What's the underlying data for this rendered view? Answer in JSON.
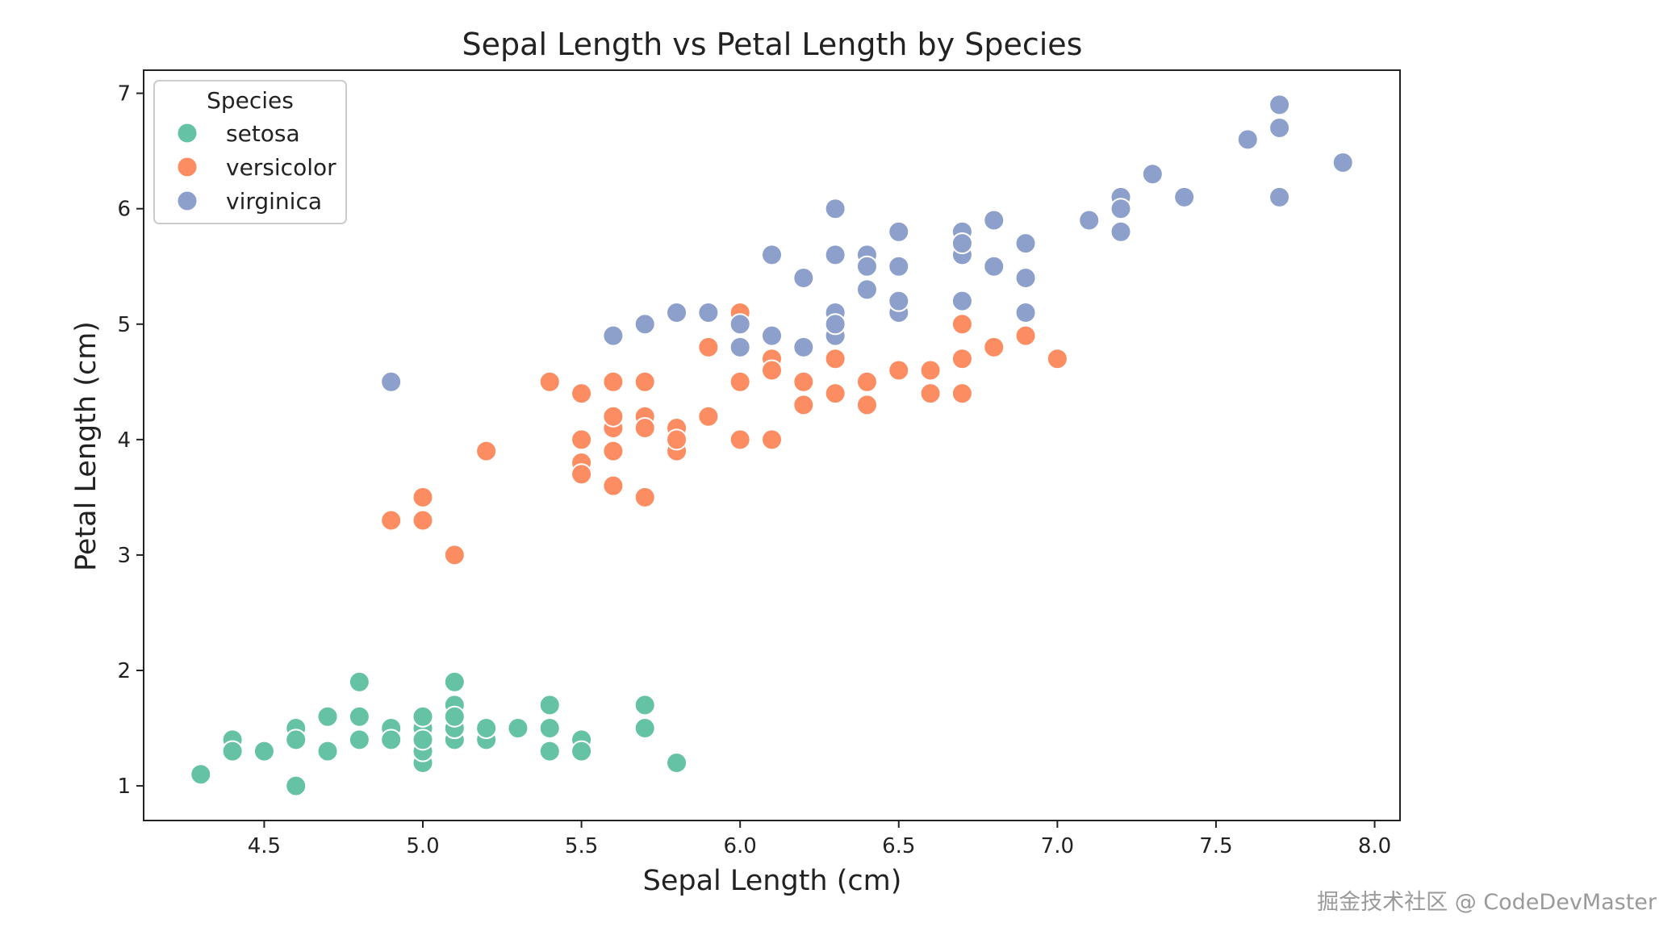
{
  "chart_data": {
    "type": "scatter",
    "title": "Sepal Length vs Petal Length by Species",
    "xlabel": "Sepal Length (cm)",
    "ylabel": "Petal Length (cm)",
    "xlim": [
      4.12,
      8.08
    ],
    "ylim": [
      0.7,
      7.2
    ],
    "xticks": [
      "4.5",
      "5.0",
      "5.5",
      "6.0",
      "6.5",
      "7.0",
      "7.5",
      "8.0"
    ],
    "yticks": [
      "1",
      "2",
      "3",
      "4",
      "5",
      "6",
      "7"
    ],
    "grid": false,
    "legend": {
      "title": "Species",
      "position": "top-left"
    },
    "series": [
      {
        "name": "setosa",
        "color": "#66c2a5",
        "points": [
          [
            5.1,
            1.4
          ],
          [
            4.9,
            1.4
          ],
          [
            4.7,
            1.3
          ],
          [
            4.6,
            1.5
          ],
          [
            5.0,
            1.4
          ],
          [
            5.4,
            1.7
          ],
          [
            4.6,
            1.4
          ],
          [
            5.0,
            1.5
          ],
          [
            4.4,
            1.4
          ],
          [
            4.9,
            1.5
          ],
          [
            5.4,
            1.5
          ],
          [
            4.8,
            1.6
          ],
          [
            4.8,
            1.4
          ],
          [
            4.3,
            1.1
          ],
          [
            5.8,
            1.2
          ],
          [
            5.7,
            1.5
          ],
          [
            5.4,
            1.3
          ],
          [
            5.1,
            1.4
          ],
          [
            5.7,
            1.7
          ],
          [
            5.1,
            1.5
          ],
          [
            5.4,
            1.7
          ],
          [
            5.1,
            1.5
          ],
          [
            4.6,
            1.0
          ],
          [
            5.1,
            1.7
          ],
          [
            4.8,
            1.9
          ],
          [
            5.0,
            1.6
          ],
          [
            5.0,
            1.6
          ],
          [
            5.2,
            1.5
          ],
          [
            5.2,
            1.4
          ],
          [
            4.7,
            1.6
          ],
          [
            4.8,
            1.6
          ],
          [
            5.4,
            1.5
          ],
          [
            5.2,
            1.5
          ],
          [
            5.5,
            1.4
          ],
          [
            4.9,
            1.5
          ],
          [
            5.0,
            1.2
          ],
          [
            5.5,
            1.3
          ],
          [
            4.9,
            1.4
          ],
          [
            4.4,
            1.3
          ],
          [
            5.1,
            1.5
          ],
          [
            5.0,
            1.3
          ],
          [
            4.5,
            1.3
          ],
          [
            4.4,
            1.3
          ],
          [
            5.0,
            1.6
          ],
          [
            5.1,
            1.9
          ],
          [
            4.8,
            1.4
          ],
          [
            5.1,
            1.6
          ],
          [
            4.6,
            1.4
          ],
          [
            5.3,
            1.5
          ],
          [
            5.0,
            1.4
          ]
        ]
      },
      {
        "name": "versicolor",
        "color": "#fc8d62",
        "points": [
          [
            7.0,
            4.7
          ],
          [
            6.4,
            4.5
          ],
          [
            6.9,
            4.9
          ],
          [
            5.5,
            4.0
          ],
          [
            6.5,
            4.6
          ],
          [
            5.7,
            4.5
          ],
          [
            6.3,
            4.7
          ],
          [
            4.9,
            3.3
          ],
          [
            6.6,
            4.6
          ],
          [
            5.2,
            3.9
          ],
          [
            5.0,
            3.5
          ],
          [
            5.9,
            4.2
          ],
          [
            6.0,
            4.0
          ],
          [
            6.1,
            4.7
          ],
          [
            5.6,
            3.6
          ],
          [
            6.7,
            4.4
          ],
          [
            5.6,
            4.5
          ],
          [
            5.8,
            4.1
          ],
          [
            6.2,
            4.5
          ],
          [
            5.6,
            3.9
          ],
          [
            5.9,
            4.8
          ],
          [
            6.1,
            4.0
          ],
          [
            6.3,
            4.9
          ],
          [
            6.1,
            4.7
          ],
          [
            6.4,
            4.3
          ],
          [
            6.6,
            4.4
          ],
          [
            6.8,
            4.8
          ],
          [
            6.7,
            5.0
          ],
          [
            6.0,
            4.5
          ],
          [
            5.7,
            3.5
          ],
          [
            5.5,
            3.8
          ],
          [
            5.5,
            3.7
          ],
          [
            5.8,
            3.9
          ],
          [
            6.0,
            5.1
          ],
          [
            5.4,
            4.5
          ],
          [
            6.0,
            4.5
          ],
          [
            6.7,
            4.7
          ],
          [
            6.3,
            4.4
          ],
          [
            5.6,
            4.1
          ],
          [
            5.5,
            4.0
          ],
          [
            5.5,
            4.4
          ],
          [
            6.1,
            4.6
          ],
          [
            5.8,
            4.0
          ],
          [
            5.0,
            3.3
          ],
          [
            5.6,
            4.2
          ],
          [
            5.7,
            4.2
          ],
          [
            5.7,
            4.2
          ],
          [
            6.2,
            4.3
          ],
          [
            5.1,
            3.0
          ],
          [
            5.7,
            4.1
          ]
        ]
      },
      {
        "name": "virginica",
        "color": "#8da0cb",
        "points": [
          [
            6.3,
            6.0
          ],
          [
            5.8,
            5.1
          ],
          [
            7.1,
            5.9
          ],
          [
            6.3,
            5.6
          ],
          [
            6.5,
            5.8
          ],
          [
            7.6,
            6.6
          ],
          [
            4.9,
            4.5
          ],
          [
            7.3,
            6.3
          ],
          [
            6.7,
            5.8
          ],
          [
            7.2,
            6.1
          ],
          [
            6.5,
            5.1
          ],
          [
            6.4,
            5.3
          ],
          [
            6.8,
            5.5
          ],
          [
            5.7,
            5.0
          ],
          [
            5.8,
            5.1
          ],
          [
            6.4,
            5.3
          ],
          [
            6.5,
            5.5
          ],
          [
            7.7,
            6.7
          ],
          [
            7.7,
            6.9
          ],
          [
            6.0,
            5.0
          ],
          [
            6.9,
            5.7
          ],
          [
            5.6,
            4.9
          ],
          [
            7.7,
            6.7
          ],
          [
            6.3,
            4.9
          ],
          [
            6.7,
            5.7
          ],
          [
            7.2,
            6.0
          ],
          [
            6.2,
            4.8
          ],
          [
            6.1,
            4.9
          ],
          [
            6.4,
            5.6
          ],
          [
            7.2,
            5.8
          ],
          [
            7.4,
            6.1
          ],
          [
            7.9,
            6.4
          ],
          [
            6.4,
            5.6
          ],
          [
            6.3,
            5.1
          ],
          [
            6.1,
            5.6
          ],
          [
            7.7,
            6.1
          ],
          [
            6.3,
            5.6
          ],
          [
            6.4,
            5.5
          ],
          [
            6.0,
            4.8
          ],
          [
            6.9,
            5.4
          ],
          [
            6.7,
            5.6
          ],
          [
            6.9,
            5.1
          ],
          [
            5.8,
            5.1
          ],
          [
            6.8,
            5.9
          ],
          [
            6.7,
            5.7
          ],
          [
            6.7,
            5.2
          ],
          [
            6.3,
            5.0
          ],
          [
            6.5,
            5.2
          ],
          [
            6.2,
            5.4
          ],
          [
            5.9,
            5.1
          ]
        ]
      }
    ]
  },
  "watermark": "掘金技术社区 @ CodeDevMaster"
}
